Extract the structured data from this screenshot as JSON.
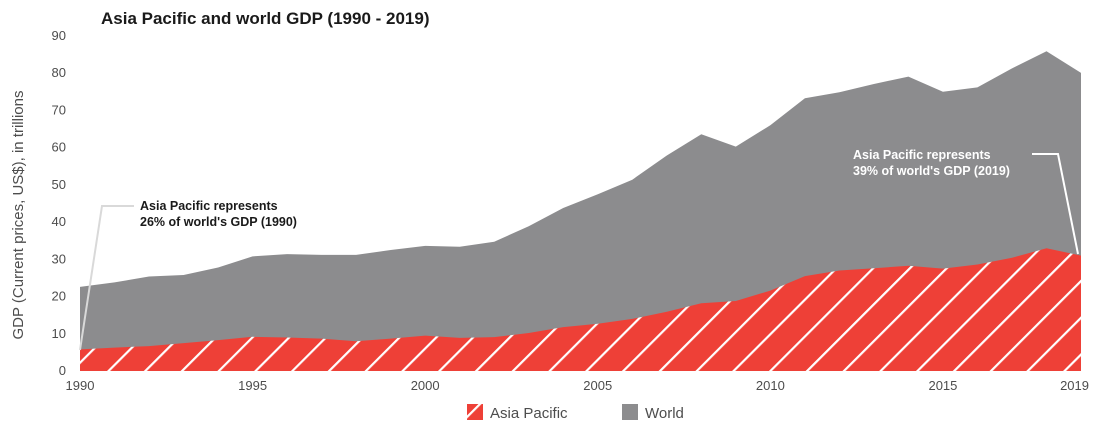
{
  "chart_data": {
    "type": "area",
    "title": "Asia Pacific and world GDP (1990 - 2019)",
    "xlabel": "",
    "ylabel": "GDP (Current prices, US$), in trillions",
    "ylim": [
      0,
      90
    ],
    "yticks": [
      0,
      10,
      20,
      30,
      40,
      50,
      60,
      70,
      80,
      90
    ],
    "xlim": [
      1990,
      2019
    ],
    "xticks": [
      1990,
      1995,
      2000,
      2005,
      2010,
      2015,
      2019
    ],
    "grid": false,
    "legend_position": "bottom-center",
    "x": [
      1990,
      1991,
      1992,
      1993,
      1994,
      1995,
      1996,
      1997,
      1998,
      1999,
      2000,
      2001,
      2002,
      2003,
      2004,
      2005,
      2006,
      2007,
      2008,
      2009,
      2010,
      2011,
      2012,
      2013,
      2014,
      2015,
      2016,
      2017,
      2018,
      2019
    ],
    "series": [
      {
        "name": "Asia Pacific",
        "color": "#ee4037",
        "pattern": "diagonal-hatch",
        "values": [
          5.8,
          6.3,
          6.7,
          7.5,
          8.3,
          9.2,
          9.0,
          8.7,
          8.0,
          8.7,
          9.5,
          8.9,
          9.1,
          10.2,
          11.8,
          12.7,
          14.0,
          15.9,
          18.2,
          18.8,
          21.6,
          25.5,
          27.0,
          27.6,
          28.3,
          27.5,
          28.6,
          30.4,
          33.0,
          31.0
        ]
      },
      {
        "name": "World",
        "color": "#8c8c8e",
        "values": [
          22.6,
          23.8,
          25.4,
          25.8,
          27.8,
          30.8,
          31.4,
          31.2,
          31.2,
          32.5,
          33.6,
          33.4,
          34.7,
          38.9,
          43.8,
          47.5,
          51.4,
          57.9,
          63.6,
          60.3,
          66.0,
          73.3,
          74.9,
          77.1,
          79.1,
          75.0,
          76.2,
          81.3,
          85.9,
          80.1
        ]
      }
    ],
    "annotations": [
      {
        "text_line1": "Asia Pacific represents",
        "text_line2": "26% of world's GDP (1990)",
        "x": 1990,
        "y": 5.8
      },
      {
        "text_line1": "Asia Pacific represents",
        "text_line2": "39% of world's GDP (2019)",
        "x": 2019,
        "y": 31.0
      }
    ],
    "legend": [
      {
        "label": "Asia Pacific"
      },
      {
        "label": "World"
      }
    ]
  }
}
